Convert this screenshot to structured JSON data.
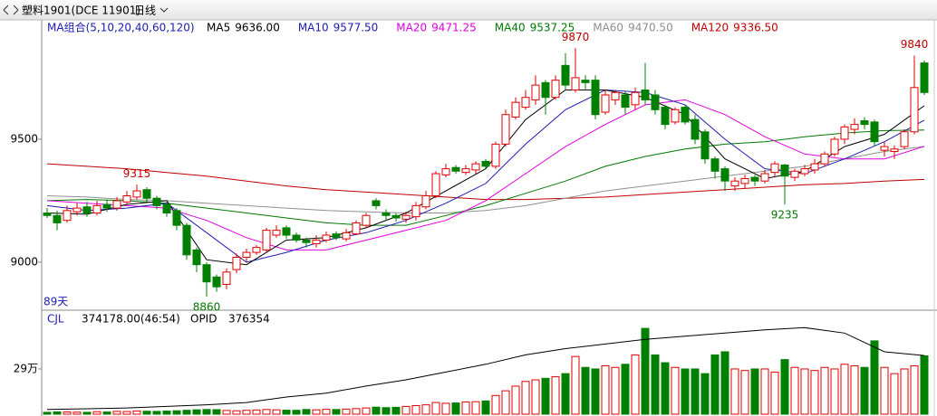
{
  "header": {
    "symbol": "塑料1901(DCE 11901)",
    "period": "日线"
  },
  "chart_data": [
    {
      "type": "candlestick",
      "ma_title": "MA组合(5,10,20,40,60,120)",
      "days_label": "89天",
      "ylim": [
        8805,
        9985
      ],
      "yticks": [
        9000,
        9500
      ],
      "up_color": "#e00000",
      "down_color": "#008000",
      "opens": [
        9200,
        9190,
        9170,
        9205,
        9225,
        9200,
        9235,
        9220,
        9245,
        9265,
        9295,
        9260,
        9235,
        9210,
        9150,
        9050,
        8990,
        8940,
        8910,
        8970,
        9020,
        9040,
        9050,
        9110,
        9140,
        9110,
        9090,
        9075,
        9090,
        9115,
        9095,
        9115,
        9150,
        9250,
        9200,
        9190,
        9175,
        9185,
        9225,
        9270,
        9355,
        9385,
        9365,
        9375,
        9410,
        9390,
        9480,
        9590,
        9630,
        9660,
        9730,
        9670,
        9800,
        9700,
        9740,
        9740,
        9610,
        9660,
        9680,
        9640,
        9700,
        9680,
        9630,
        9570,
        9630,
        9580,
        9530,
        9420,
        9380,
        9310,
        9320,
        9345,
        9330,
        9365,
        9395,
        9345,
        9360,
        9375,
        9400,
        9440,
        9500,
        9540,
        9575,
        9570,
        9455,
        9450,
        9470,
        9530,
        9810
      ],
      "highs": [
        9220,
        9210,
        9230,
        9240,
        9245,
        9250,
        9255,
        9265,
        9290,
        9315,
        9305,
        9270,
        9245,
        9220,
        9160,
        9060,
        9000,
        8950,
        8975,
        9035,
        9055,
        9070,
        9140,
        9150,
        9150,
        9120,
        9100,
        9110,
        9125,
        9125,
        9135,
        9170,
        9200,
        9260,
        9215,
        9200,
        9205,
        9245,
        9290,
        9370,
        9400,
        9395,
        9395,
        9410,
        9420,
        9490,
        9620,
        9670,
        9700,
        9760,
        9740,
        9760,
        9850,
        9870,
        9760,
        9760,
        9700,
        9700,
        9695,
        9710,
        9810,
        9700,
        9640,
        9630,
        9640,
        9600,
        9540,
        9430,
        9390,
        9345,
        9355,
        9355,
        9375,
        9410,
        9400,
        9380,
        9395,
        9420,
        9450,
        9510,
        9560,
        9585,
        9590,
        9580,
        9490,
        9475,
        9540,
        9840,
        9820
      ],
      "lows": [
        9180,
        9130,
        9160,
        9190,
        9185,
        9190,
        9205,
        9210,
        9235,
        9255,
        9245,
        9215,
        9185,
        9130,
        9010,
        8960,
        8860,
        8880,
        8890,
        8955,
        9000,
        9030,
        9040,
        9100,
        9095,
        9080,
        9060,
        9060,
        9080,
        9090,
        9085,
        9110,
        9140,
        9215,
        9170,
        9165,
        9160,
        9170,
        9215,
        9260,
        9345,
        9360,
        9355,
        9360,
        9380,
        9380,
        9470,
        9580,
        9620,
        9640,
        9600,
        9660,
        9700,
        9690,
        9700,
        9580,
        9600,
        9640,
        9600,
        9620,
        9640,
        9600,
        9540,
        9560,
        9560,
        9480,
        9400,
        9340,
        9290,
        9290,
        9300,
        9310,
        9320,
        9350,
        9235,
        9330,
        9350,
        9360,
        9390,
        9430,
        9480,
        9520,
        9540,
        9470,
        9430,
        9420,
        9460,
        9520,
        9680
      ],
      "closes": [
        9190,
        9160,
        9210,
        9220,
        9200,
        9230,
        9220,
        9250,
        9270,
        9290,
        9260,
        9230,
        9200,
        9150,
        9030,
        8990,
        8920,
        8900,
        8960,
        9020,
        9040,
        9060,
        9130,
        9130,
        9110,
        9090,
        9080,
        9090,
        9110,
        9100,
        9120,
        9160,
        9190,
        9230,
        9190,
        9180,
        9190,
        9230,
        9270,
        9360,
        9380,
        9370,
        9380,
        9400,
        9390,
        9480,
        9600,
        9650,
        9670,
        9720,
        9670,
        9740,
        9720,
        9750,
        9730,
        9600,
        9680,
        9690,
        9630,
        9690,
        9660,
        9620,
        9560,
        9620,
        9570,
        9500,
        9420,
        9370,
        9330,
        9330,
        9340,
        9330,
        9360,
        9400,
        9350,
        9370,
        9380,
        9400,
        9440,
        9500,
        9550,
        9560,
        9560,
        9490,
        9470,
        9460,
        9530,
        9710,
        9690
      ],
      "series": [
        {
          "name": "MA5",
          "value_label": "9636.00",
          "color": "#000000",
          "x": [
            0,
            4,
            8,
            12,
            16,
            20,
            24,
            28,
            32,
            36,
            40,
            44,
            48,
            52,
            56,
            60,
            64,
            68,
            72,
            76,
            80,
            84,
            88
          ],
          "values": [
            9200,
            9195,
            9235,
            9250,
            9010,
            8990,
            9090,
            9100,
            9140,
            9200,
            9290,
            9380,
            9580,
            9700,
            9700,
            9670,
            9600,
            9420,
            9340,
            9370,
            9470,
            9520,
            9636
          ]
        },
        {
          "name": "MA10",
          "value_label": "9577.50",
          "color": "#1c1cb4",
          "x": [
            0,
            4,
            8,
            12,
            16,
            20,
            24,
            28,
            32,
            36,
            40,
            44,
            48,
            52,
            56,
            60,
            64,
            68,
            72,
            76,
            80,
            84,
            88
          ],
          "values": [
            9230,
            9210,
            9220,
            9240,
            9120,
            9000,
            9040,
            9090,
            9120,
            9170,
            9240,
            9320,
            9480,
            9620,
            9700,
            9690,
            9640,
            9500,
            9380,
            9360,
            9420,
            9490,
            9577.5
          ]
        },
        {
          "name": "MA20",
          "value_label": "9471.25",
          "color": "#e000e0",
          "x": [
            0,
            4,
            8,
            12,
            16,
            20,
            24,
            28,
            32,
            36,
            40,
            44,
            48,
            52,
            56,
            60,
            64,
            68,
            72,
            76,
            80,
            84,
            88
          ],
          "values": [
            9250,
            9240,
            9230,
            9220,
            9170,
            9100,
            9050,
            9050,
            9090,
            9130,
            9170,
            9250,
            9360,
            9470,
            9560,
            9640,
            9660,
            9600,
            9510,
            9440,
            9420,
            9420,
            9471.25
          ]
        },
        {
          "name": "MA40",
          "value_label": "9537.25",
          "color": "#007a00",
          "x": [
            0,
            4,
            8,
            12,
            16,
            20,
            24,
            28,
            32,
            36,
            40,
            44,
            48,
            52,
            56,
            60,
            64,
            68,
            72,
            76,
            80,
            84,
            88
          ],
          "values": [
            9250,
            9255,
            9250,
            9240,
            9220,
            9200,
            9180,
            9160,
            9150,
            9150,
            9190,
            9230,
            9280,
            9330,
            9390,
            9430,
            9460,
            9480,
            9490,
            9510,
            9525,
            9535,
            9537.25
          ]
        },
        {
          "name": "MA60",
          "value_label": "9470.50",
          "color": "#909090",
          "x": [
            0,
            4,
            8,
            12,
            16,
            20,
            24,
            28,
            32,
            36,
            40,
            44,
            48,
            52,
            56,
            60,
            64,
            68,
            72,
            76,
            80,
            84,
            88
          ],
          "values": [
            9270,
            9265,
            9255,
            9250,
            9240,
            9230,
            9220,
            9210,
            9205,
            9200,
            9200,
            9210,
            9230,
            9260,
            9290,
            9310,
            9330,
            9350,
            9370,
            9390,
            9420,
            9450,
            9470.5
          ]
        },
        {
          "name": "MA120",
          "value_label": "9336.50",
          "color": "#c00000",
          "x": [
            0,
            4,
            8,
            12,
            16,
            20,
            24,
            28,
            32,
            36,
            40,
            44,
            48,
            52,
            56,
            60,
            64,
            68,
            72,
            76,
            80,
            84,
            88
          ],
          "values": [
            9400,
            9390,
            9380,
            9365,
            9350,
            9330,
            9310,
            9295,
            9285,
            9275,
            9265,
            9255,
            9255,
            9260,
            9265,
            9275,
            9285,
            9295,
            9305,
            9315,
            9320,
            9330,
            9336.5
          ]
        }
      ],
      "annotations": [
        {
          "x": 9,
          "value": 9315,
          "color": "#c00000"
        },
        {
          "x": 16,
          "value": 8860,
          "color": "#007a00"
        },
        {
          "x": 53,
          "value": 9870,
          "color": "#c00000"
        },
        {
          "x": 74,
          "value": 9235,
          "color": "#007a00"
        },
        {
          "x": 87,
          "value": 9840,
          "color": "#c00000"
        }
      ]
    },
    {
      "type": "volume",
      "name": "CJL",
      "value_label": "374178.00(46:54)",
      "ylim": [
        0,
        655000
      ],
      "yticks": [
        {
          "value": 290000,
          "label": "29万"
        }
      ],
      "values": [
        12000,
        15000,
        14000,
        13000,
        12000,
        16000,
        14000,
        18000,
        17000,
        20000,
        19000,
        18000,
        20000,
        22000,
        25000,
        28000,
        30000,
        29000,
        24000,
        22000,
        25000,
        27000,
        30000,
        28000,
        26000,
        25000,
        30000,
        28000,
        31000,
        30000,
        33000,
        36000,
        40000,
        45000,
        42000,
        44000,
        50000,
        55000,
        60000,
        75000,
        70000,
        72000,
        78000,
        80000,
        85000,
        120000,
        150000,
        180000,
        210000,
        220000,
        230000,
        240000,
        260000,
        370000,
        300000,
        290000,
        310000,
        300000,
        320000,
        380000,
        550000,
        380000,
        330000,
        300000,
        290000,
        290000,
        260000,
        380000,
        400000,
        290000,
        280000,
        290000,
        290000,
        270000,
        350000,
        300000,
        290000,
        280000,
        300000,
        290000,
        320000,
        310000,
        300000,
        470000,
        300000,
        260000,
        290000,
        310000,
        374178
      ],
      "line": {
        "name": "OPID",
        "value_label": "376354",
        "color": "#000000",
        "x": [
          0,
          4,
          8,
          12,
          16,
          20,
          24,
          28,
          32,
          36,
          40,
          44,
          48,
          52,
          56,
          60,
          64,
          68,
          72,
          76,
          80,
          84,
          88
        ],
        "values": [
          30000,
          35000,
          40000,
          50000,
          60000,
          75000,
          110000,
          135000,
          180000,
          220000,
          270000,
          320000,
          380000,
          420000,
          450000,
          480000,
          500000,
          520000,
          540000,
          555000,
          520000,
          400000,
          376354
        ]
      }
    }
  ]
}
